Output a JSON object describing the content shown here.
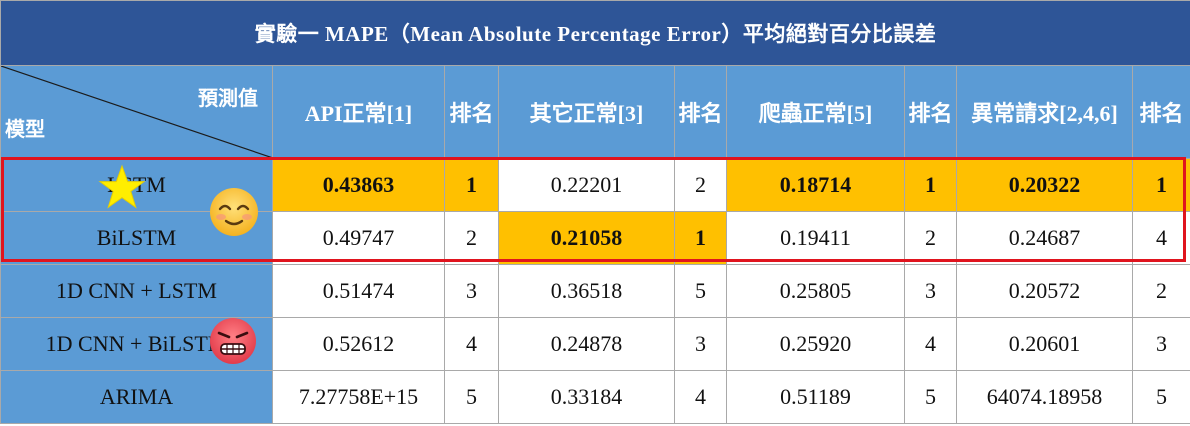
{
  "table": {
    "title": "實驗一 MAPE（Mean Absolute Percentage Error）平均絕對百分比誤差",
    "corner_top": "預測值",
    "corner_bottom": "模型",
    "columns": [
      "API正常[1]",
      "排名",
      "其它正常[3]",
      "排名",
      "爬蟲正常[5]",
      "排名",
      "異常請求[2,4,6]",
      "排名"
    ],
    "rows": [
      {
        "model": "LSTM",
        "cells": [
          "0.43863",
          "1",
          "0.22201",
          "2",
          "0.18714",
          "1",
          "0.20322",
          "1"
        ]
      },
      {
        "model": "BiLSTM",
        "cells": [
          "0.49747",
          "2",
          "0.21058",
          "1",
          "0.19411",
          "2",
          "0.24687",
          "4"
        ]
      },
      {
        "model": "1D CNN + LSTM",
        "cells": [
          "0.51474",
          "3",
          "0.36518",
          "5",
          "0.25805",
          "3",
          "0.20572",
          "2"
        ]
      },
      {
        "model": "1D CNN + BiLSTM",
        "cells": [
          "0.52612",
          "4",
          "0.24878",
          "3",
          "0.25920",
          "4",
          "0.20601",
          "3"
        ]
      },
      {
        "model": "ARIMA",
        "cells": [
          "7.27758E+15",
          "5",
          "0.33184",
          "4",
          "0.51189",
          "5",
          "64074.18958",
          "5"
        ]
      }
    ]
  },
  "colors": {
    "title_bg": "#2e5597",
    "header_bg": "#5b9bd5",
    "highlight": "#ffc000",
    "outline": "#e0141e"
  },
  "icons": [
    "star-icon",
    "smiling-face-icon",
    "angry-face-icon"
  ]
}
